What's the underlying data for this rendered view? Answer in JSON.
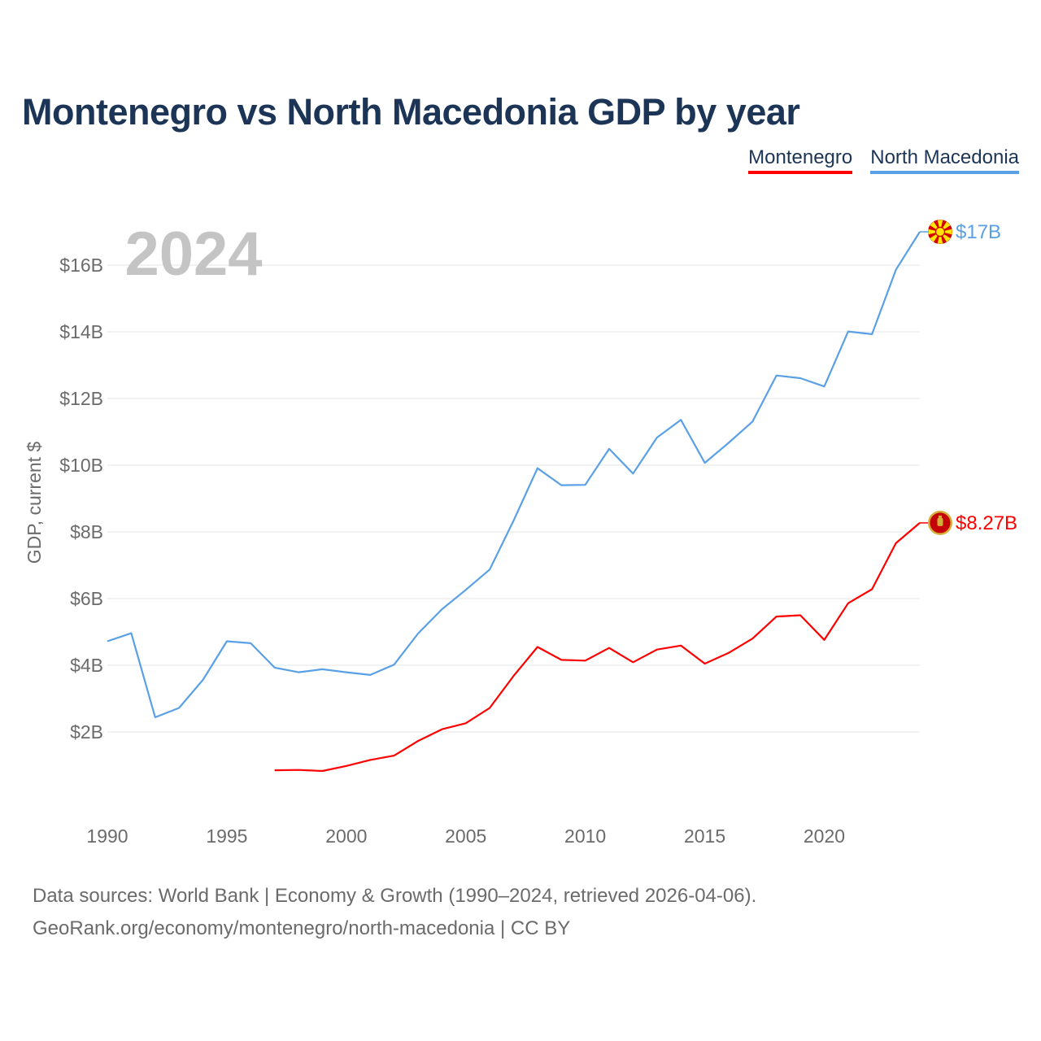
{
  "title": "Montenegro vs North Macedonia GDP by year",
  "legend": [
    {
      "name": "Montenegro",
      "color": "#ff0000"
    },
    {
      "name": "North Macedonia",
      "color": "#5aa0e6"
    }
  ],
  "footer": {
    "line1": "Data sources: World Bank | Economy & Growth (1990–2024, retrieved 2026-04-06).",
    "line2": "GeoRank.org/economy/montenegro/north-macedonia | CC BY"
  },
  "chart_data": {
    "type": "line",
    "title": "Montenegro vs North Macedonia GDP by year",
    "ylabel": "GDP, current $",
    "xlabel": "",
    "year_label": "2024",
    "xlim": [
      1990,
      2024
    ],
    "ylim": [
      0,
      17
    ],
    "xticks": [
      1990,
      1995,
      2000,
      2005,
      2010,
      2015,
      2020
    ],
    "xtick_labels": [
      "1990",
      "1995",
      "2000",
      "2005",
      "2010",
      "2015",
      "2020"
    ],
    "yticks": [
      2,
      4,
      6,
      8,
      10,
      12,
      14,
      16
    ],
    "ytick_labels": [
      "$2B",
      "$4B",
      "$6B",
      "$8B",
      "$10B",
      "$12B",
      "$14B",
      "$16B"
    ],
    "series": [
      {
        "name": "Montenegro",
        "color": "#ff0000",
        "end_label": "$8.27B",
        "flag": "montenegro-flag",
        "x": [
          1997,
          1998,
          1999,
          2000,
          2001,
          2002,
          2003,
          2004,
          2005,
          2006,
          2007,
          2008,
          2009,
          2010,
          2011,
          2012,
          2013,
          2014,
          2015,
          2016,
          2017,
          2018,
          2019,
          2020,
          2021,
          2022,
          2023,
          2024
        ],
        "values": [
          0.85,
          0.86,
          0.83,
          0.98,
          1.16,
          1.29,
          1.73,
          2.08,
          2.26,
          2.72,
          3.68,
          4.55,
          4.16,
          4.14,
          4.52,
          4.09,
          4.47,
          4.59,
          4.05,
          4.37,
          4.8,
          5.46,
          5.5,
          4.76,
          5.86,
          6.28,
          7.66,
          8.27
        ]
      },
      {
        "name": "North Macedonia",
        "color": "#5aa0e6",
        "end_label": "$17B",
        "flag": "north-macedonia-flag",
        "x": [
          1990,
          1991,
          1992,
          1993,
          1994,
          1995,
          1996,
          1997,
          1998,
          1999,
          2000,
          2001,
          2002,
          2003,
          2004,
          2005,
          2006,
          2007,
          2008,
          2009,
          2010,
          2011,
          2012,
          2013,
          2014,
          2015,
          2016,
          2017,
          2018,
          2019,
          2020,
          2021,
          2022,
          2023,
          2024
        ],
        "values": [
          4.72,
          4.96,
          2.44,
          2.72,
          3.56,
          4.72,
          4.66,
          3.93,
          3.79,
          3.88,
          3.79,
          3.71,
          4.02,
          4.95,
          5.68,
          6.26,
          6.87,
          8.34,
          9.91,
          9.4,
          9.41,
          10.49,
          9.75,
          10.83,
          11.36,
          10.07,
          10.67,
          11.31,
          12.69,
          12.61,
          12.36,
          14.01,
          13.93,
          15.86,
          17.0
        ]
      }
    ]
  }
}
